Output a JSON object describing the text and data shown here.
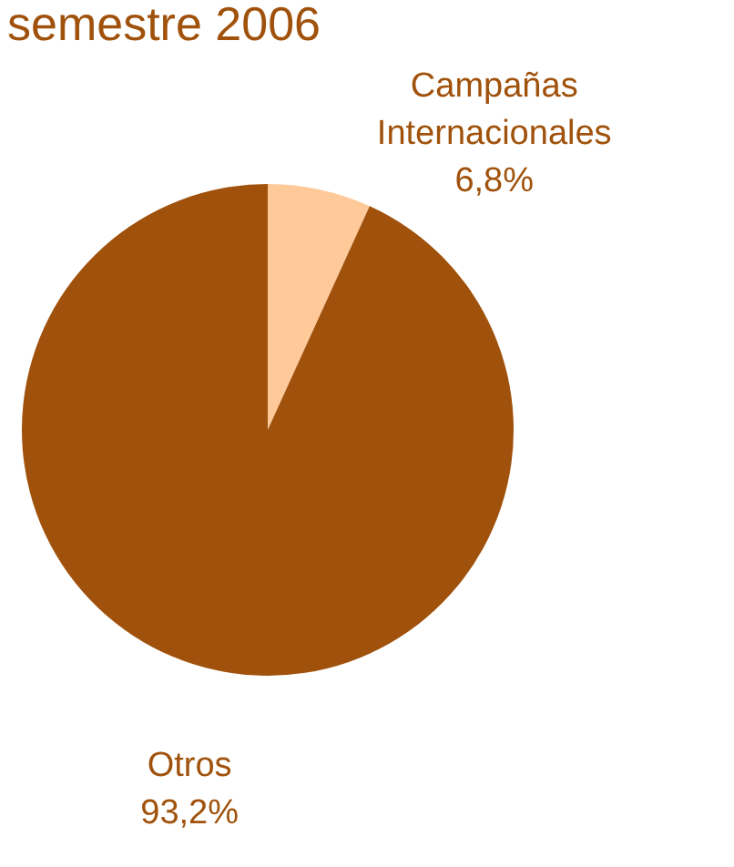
{
  "chart_data": {
    "type": "pie",
    "title": "semestre 2006",
    "categories": [
      "Campañas Internacionales",
      "Otros"
    ],
    "values": [
      6.8,
      93.2
    ],
    "colors": [
      "#ffc999",
      "#a0520c"
    ],
    "value_labels": [
      "6,8%",
      "93,2%"
    ],
    "legend": false
  }
}
